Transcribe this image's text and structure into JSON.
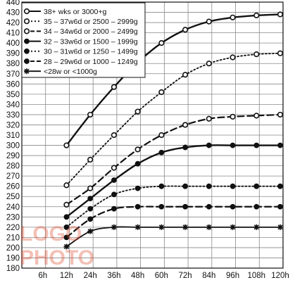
{
  "chart_data": {
    "type": "line",
    "title": "",
    "xlabel": "",
    "ylabel": "",
    "x": [
      "6h",
      "12h",
      "24h",
      "36h",
      "48h",
      "60h",
      "72h",
      "84h",
      "96h",
      "108h",
      "120h"
    ],
    "ylim": [
      180,
      440
    ],
    "y_ticks": [
      180,
      190,
      200,
      210,
      220,
      230,
      240,
      250,
      260,
      270,
      280,
      290,
      300,
      310,
      320,
      330,
      340,
      350,
      360,
      370,
      380,
      390,
      400,
      410,
      420,
      430,
      440
    ],
    "grid": true,
    "legend_position": "top-left",
    "series": [
      {
        "name": "38+ wks or 3000+g",
        "line_style": "solid-thick",
        "marker": "open-circle",
        "values": [
          null,
          300,
          330,
          357,
          381,
          400,
          413,
          421,
          425,
          427,
          428
        ]
      },
      {
        "name": "35 – 37w6d or 2500 – 2999g",
        "line_style": "dotted",
        "marker": "open-circle",
        "values": [
          null,
          261,
          286,
          310,
          333,
          352,
          369,
          380,
          386,
          389,
          390
        ]
      },
      {
        "name": "34 – 34w6d or 2000 – 2499g",
        "line_style": "dashed",
        "marker": "open-circle",
        "values": [
          null,
          242,
          258,
          278,
          296,
          310,
          320,
          326,
          328,
          329,
          330
        ]
      },
      {
        "name": "32 – 33w6d or 1500 – 1999g",
        "line_style": "solid-thick",
        "marker": "filled-circle",
        "values": [
          null,
          230,
          248,
          266,
          282,
          293,
          298,
          300,
          300,
          300,
          300
        ]
      },
      {
        "name": "30 – 31w6d or 1250 – 1499g",
        "line_style": "dotted",
        "marker": "filled-circle",
        "values": [
          null,
          220,
          238,
          252,
          258,
          260,
          260,
          260,
          260,
          260,
          260
        ]
      },
      {
        "name": "28 – 29w6d or 1000 – 1249g",
        "line_style": "dashed",
        "marker": "filled-circle",
        "values": [
          null,
          210,
          228,
          238,
          240,
          240,
          240,
          240,
          240,
          240,
          240
        ]
      },
      {
        "name": "<28w or <1000g",
        "line_style": "solid",
        "marker": "asterisk",
        "values": [
          null,
          201,
          216,
          220,
          220,
          220,
          220,
          220,
          220,
          220,
          220
        ]
      }
    ],
    "colors": {
      "lines": "#111111",
      "grid": "#888888",
      "background": "#ffffff",
      "watermark": "#e24a2e"
    }
  },
  "watermark": {
    "line1": "LOGO",
    "line2": "PHOTO"
  }
}
